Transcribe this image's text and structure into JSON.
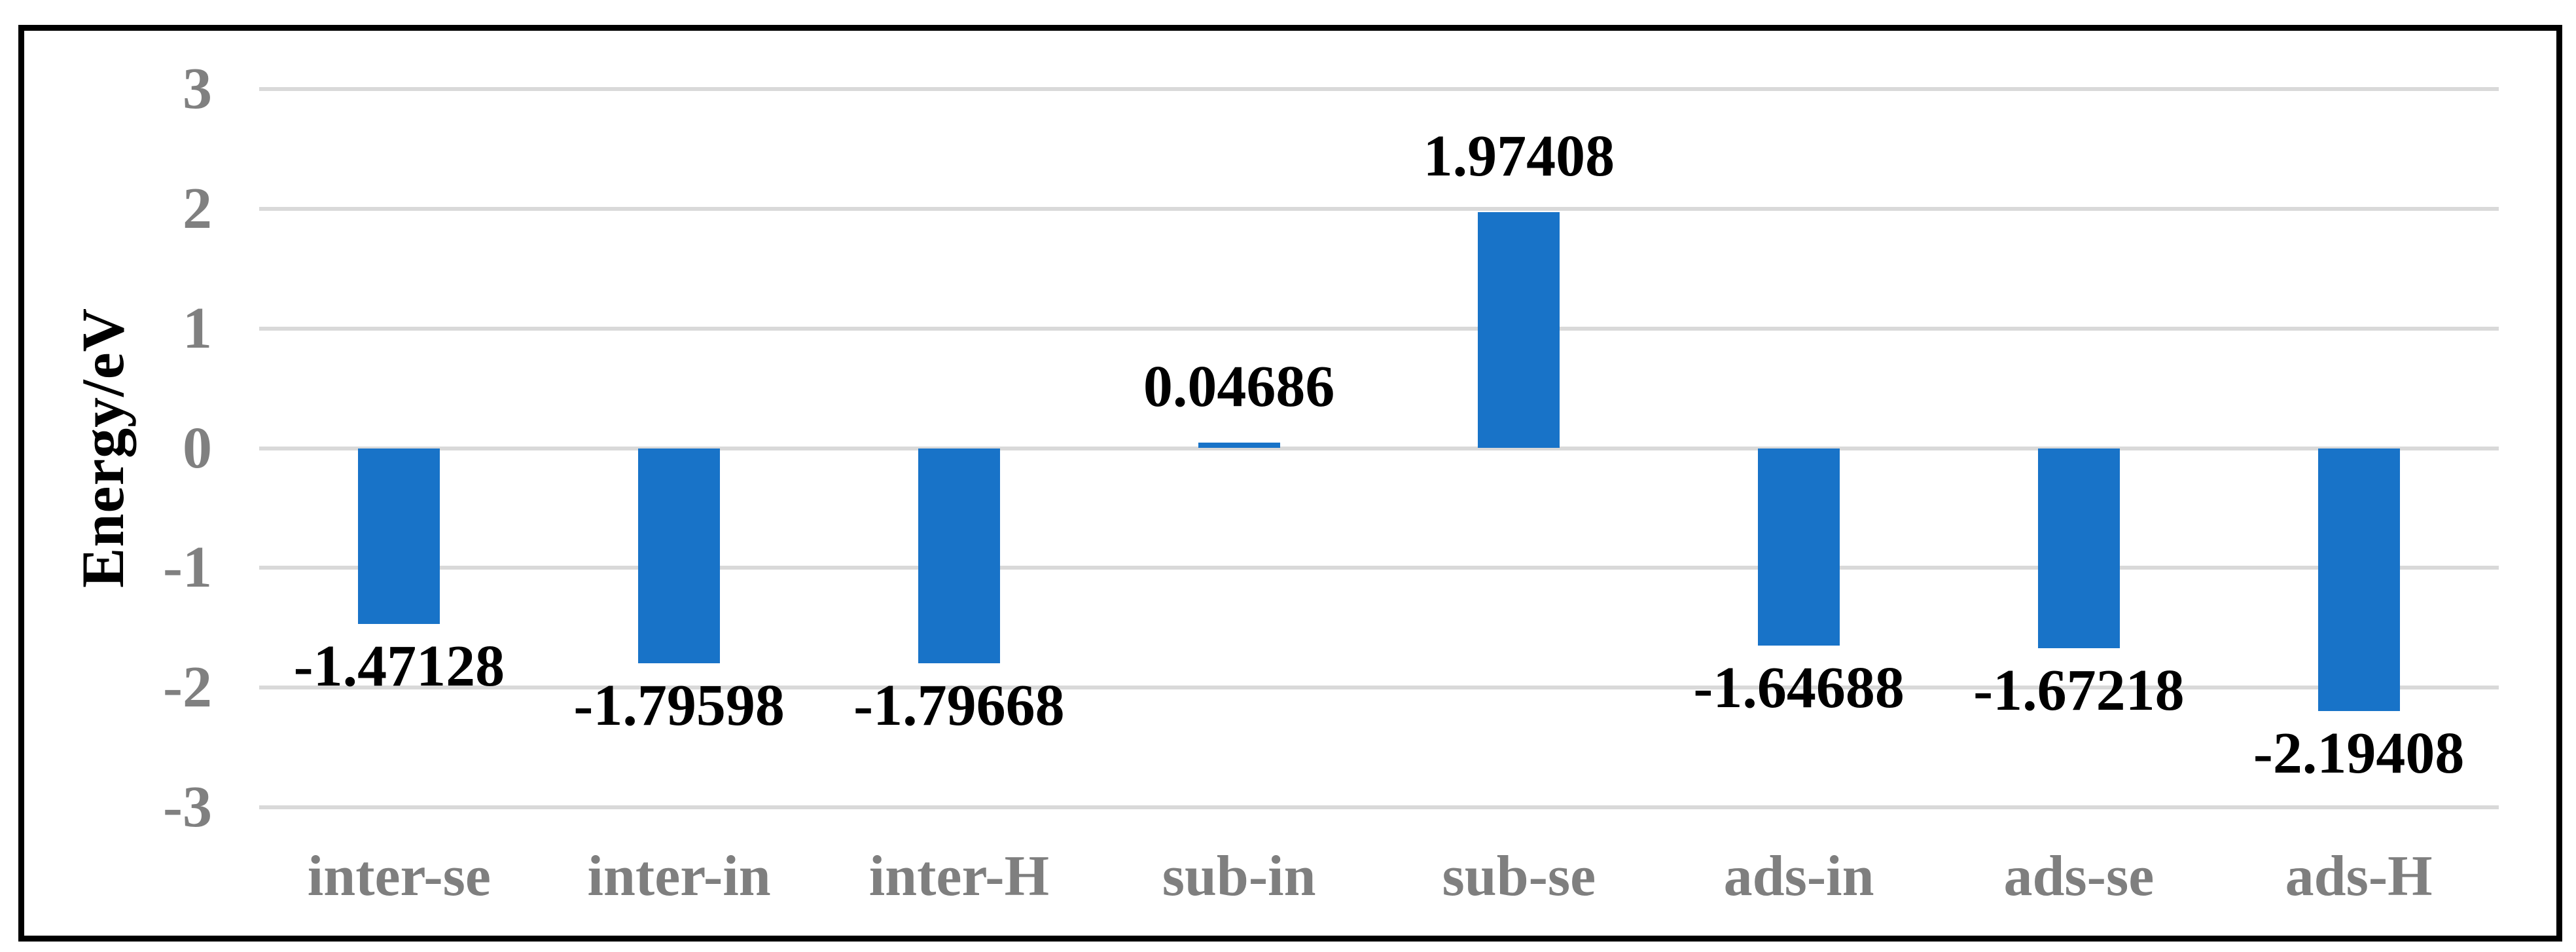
{
  "chart_data": {
    "type": "bar",
    "title": "",
    "ylabel": "Energy/eV",
    "xlabel": "",
    "categories": [
      "inter-se",
      "inter-in",
      "inter-H",
      "sub-in",
      "sub-se",
      "ads-in",
      "ads-se",
      "ads-H"
    ],
    "values": [
      -1.47128,
      -1.79598,
      -1.79668,
      0.04686,
      1.97408,
      -1.64688,
      -1.67218,
      -2.19408
    ],
    "value_labels": [
      "-1.47128",
      "-1.79598",
      "-1.79668",
      "0.04686",
      "1.97408",
      "-1.64688",
      "-1.67218",
      "-2.19408"
    ],
    "series_count": 1,
    "ylim": [
      -3,
      3
    ],
    "ytick_labels": [
      "3",
      "2",
      "1",
      "0",
      "-1",
      "-2",
      "-3"
    ],
    "ytick_values": [
      3,
      2,
      1,
      0,
      -1,
      -2,
      -3
    ],
    "grid": "horizontal",
    "legend": "none",
    "data_label_position": "outside-end",
    "colors": {
      "bar_fill": "#1873C8",
      "gridline": "#D9D9D9",
      "ytick_text": "#808080",
      "xtick_text": "#7F7F7F",
      "data_label_text": "#000000",
      "axis_title_text": "#000000",
      "frame_border": "#000000",
      "background": "#FFFFFF"
    }
  }
}
